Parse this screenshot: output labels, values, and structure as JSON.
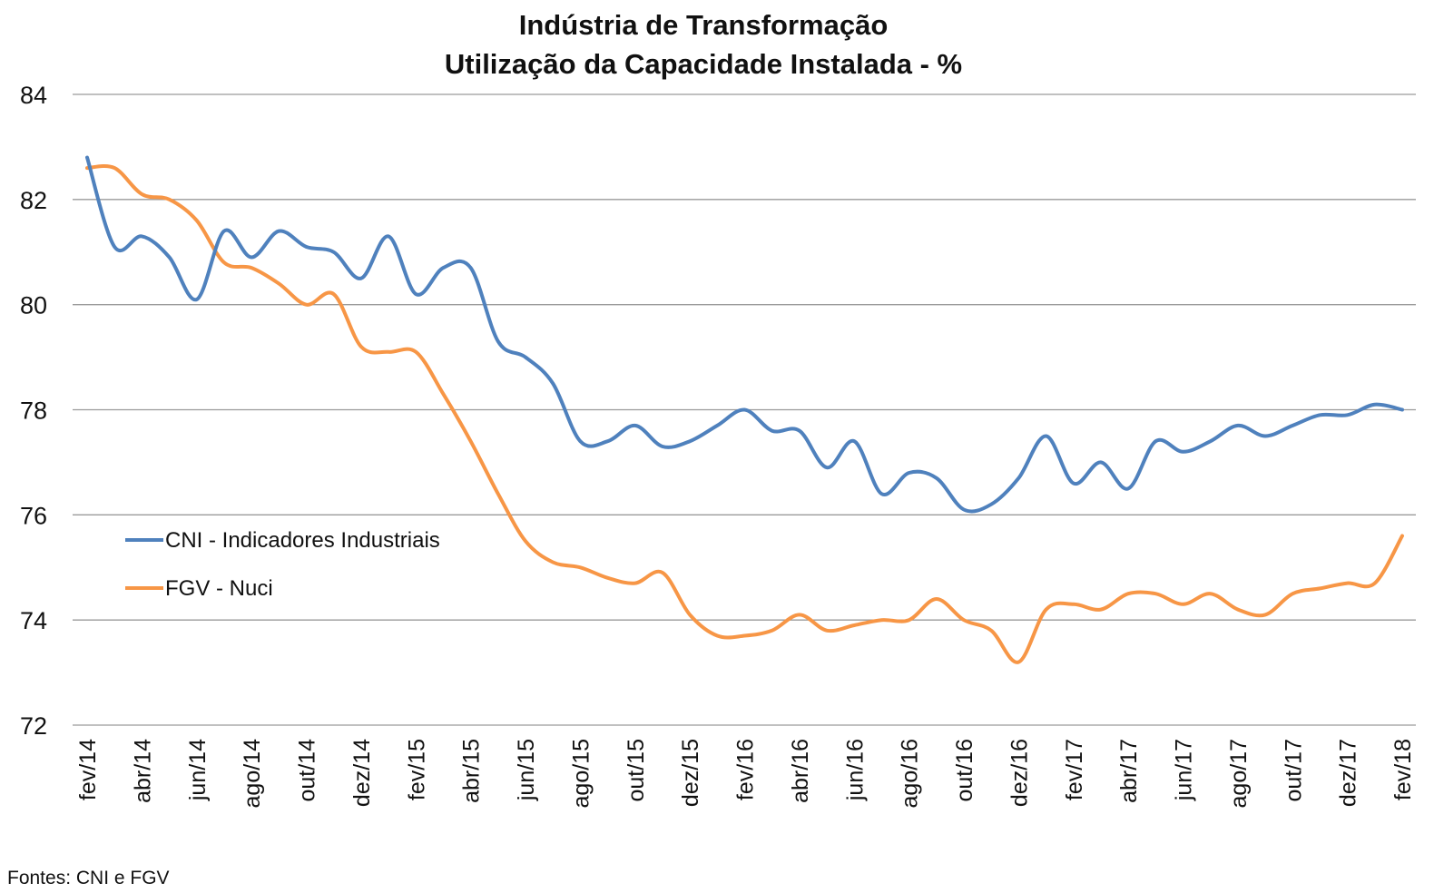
{
  "chart_data": {
    "type": "line",
    "title": [
      "Indústria de Transformação",
      "Utilização da Capacidade Instalada - %"
    ],
    "ylim": [
      72,
      84
    ],
    "yticks": [
      72,
      74,
      76,
      78,
      80,
      82,
      84
    ],
    "grid": true,
    "legend_position": "center-left",
    "x": [
      "fev/14",
      "mar/14",
      "abr/14",
      "mai/14",
      "jun/14",
      "jul/14",
      "ago/14",
      "set/14",
      "out/14",
      "nov/14",
      "dez/14",
      "jan/15",
      "fev/15",
      "mar/15",
      "abr/15",
      "mai/15",
      "jun/15",
      "jul/15",
      "ago/15",
      "set/15",
      "out/15",
      "nov/15",
      "dez/15",
      "jan/16",
      "fev/16",
      "mar/16",
      "abr/16",
      "mai/16",
      "jun/16",
      "jul/16",
      "ago/16",
      "set/16",
      "out/16",
      "nov/16",
      "dez/16",
      "jan/17",
      "fev/17",
      "mar/17",
      "abr/17",
      "mai/17",
      "jun/17",
      "jul/17",
      "ago/17",
      "set/17",
      "out/17",
      "nov/17",
      "dez/17",
      "jan/18",
      "fev/18"
    ],
    "xtick_labels": [
      "fev/14",
      "abr/14",
      "jun/14",
      "ago/14",
      "out/14",
      "dez/14",
      "fev/15",
      "abr/15",
      "jun/15",
      "ago/15",
      "out/15",
      "dez/15",
      "fev/16",
      "abr/16",
      "jun/16",
      "ago/16",
      "out/16",
      "dez/16",
      "fev/17",
      "abr/17",
      "jun/17",
      "ago/17",
      "out/17",
      "dez/17",
      "fev/18"
    ],
    "series": [
      {
        "name": "CNI - Indicadores Industriais",
        "color": "#4F81BD",
        "values": [
          82.8,
          81.1,
          81.3,
          80.9,
          80.1,
          81.4,
          80.9,
          81.4,
          81.1,
          81.0,
          80.5,
          81.3,
          80.2,
          80.7,
          80.7,
          79.3,
          79.0,
          78.5,
          77.4,
          77.4,
          77.7,
          77.3,
          77.4,
          77.7,
          78.0,
          77.6,
          77.6,
          76.9,
          77.4,
          76.4,
          76.8,
          76.7,
          76.1,
          76.2,
          76.7,
          77.5,
          76.6,
          77.0,
          76.5,
          77.4,
          77.2,
          77.4,
          77.7,
          77.5,
          77.7,
          77.9,
          77.9,
          78.1,
          78.0
        ]
      },
      {
        "name": "FGV - Nuci",
        "color": "#F79646",
        "values": [
          82.6,
          82.6,
          82.1,
          82.0,
          81.6,
          80.8,
          80.7,
          80.4,
          80.0,
          80.2,
          79.2,
          79.1,
          79.1,
          78.3,
          77.4,
          76.4,
          75.5,
          75.1,
          75.0,
          74.8,
          74.7,
          74.9,
          74.1,
          73.7,
          73.7,
          73.8,
          74.1,
          73.8,
          73.9,
          74.0,
          74.0,
          74.4,
          74.0,
          73.8,
          73.2,
          74.2,
          74.3,
          74.2,
          74.5,
          74.5,
          74.3,
          74.5,
          74.2,
          74.1,
          74.5,
          74.6,
          74.7,
          74.7,
          75.6
        ]
      }
    ]
  },
  "source_note": "Fontes: CNI e FGV"
}
